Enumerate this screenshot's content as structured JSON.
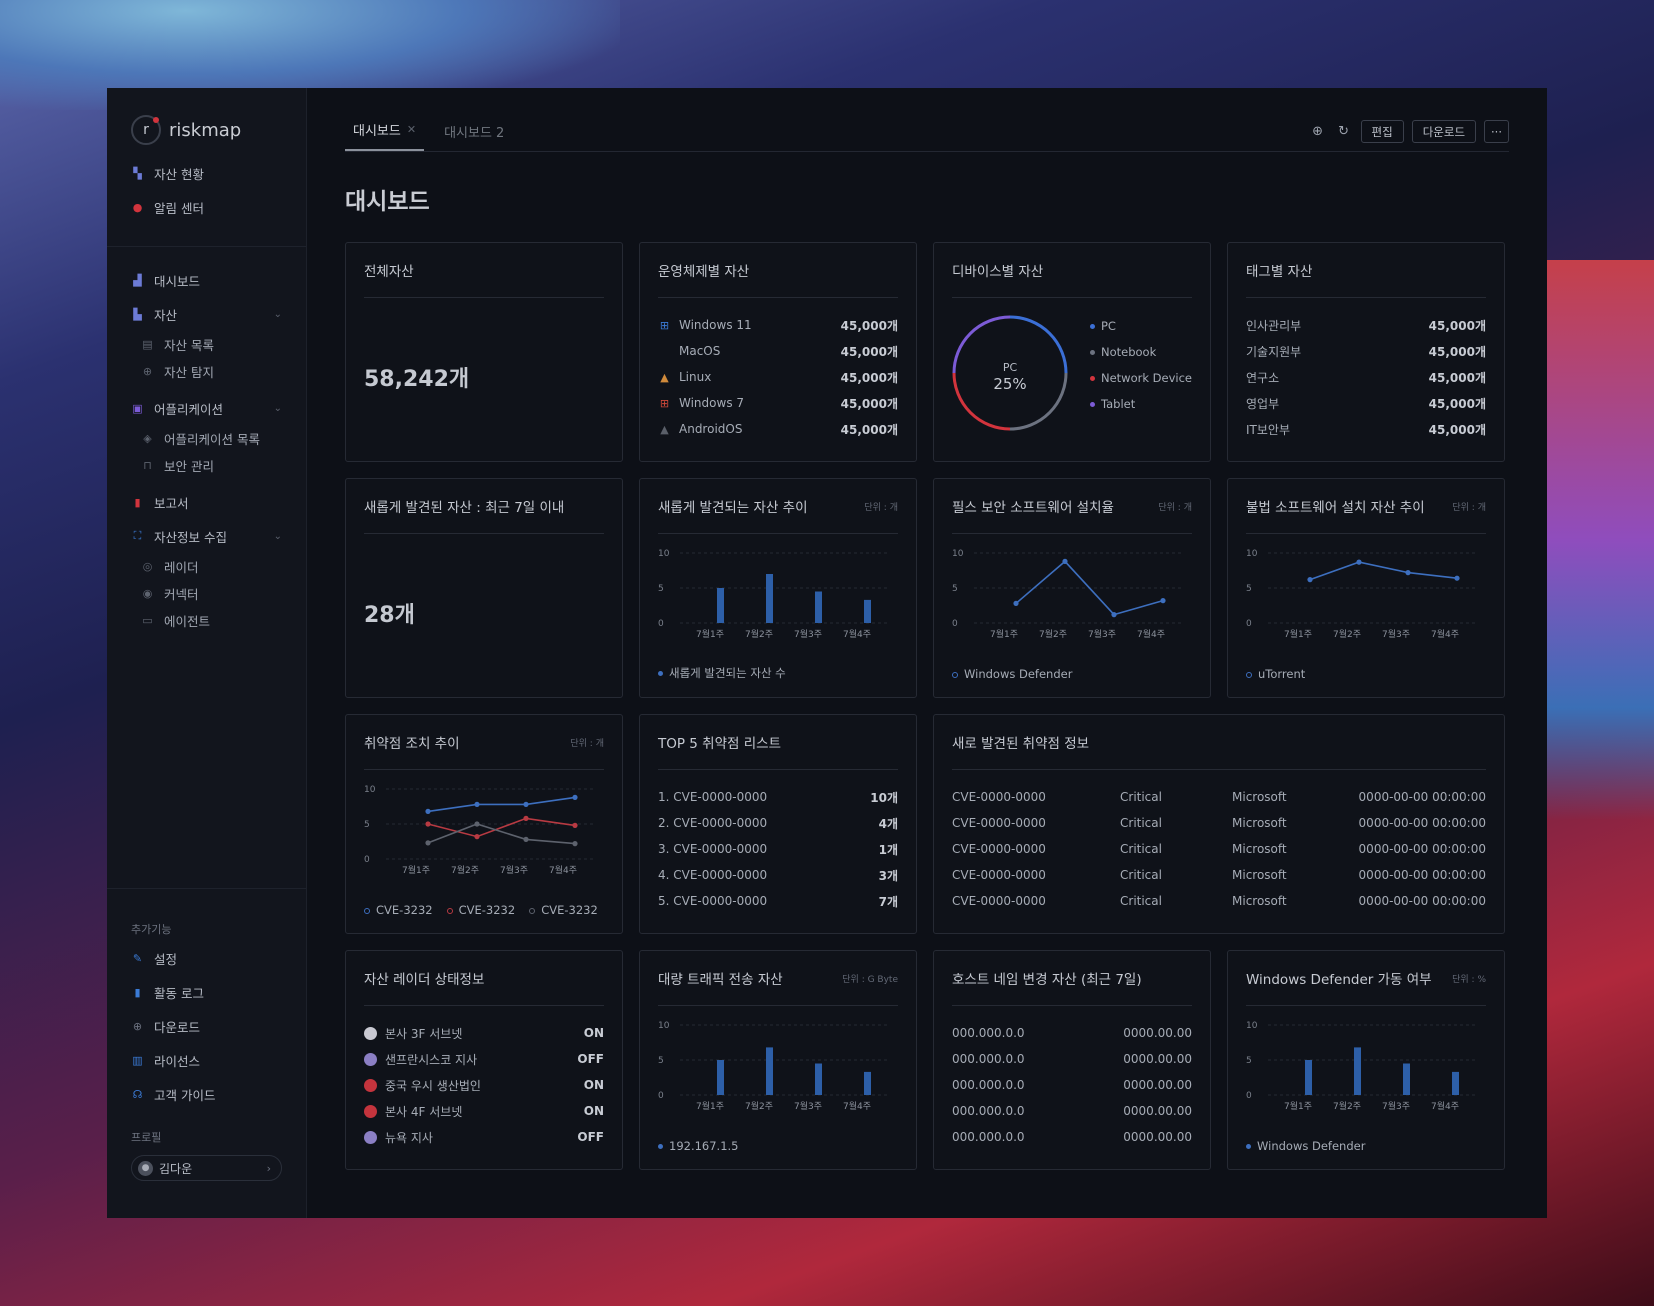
{
  "app": {
    "logo_text": "riskmap"
  },
  "sidebar": {
    "top_items": [
      {
        "label": "자산 현황",
        "icon": "asset-status-icon",
        "color": "#6c7bd6"
      },
      {
        "label": "알림 센터",
        "icon": "bell-icon",
        "color": "#d2343d"
      }
    ],
    "items": [
      {
        "label": "대시보드",
        "icon": "bar-chart-icon",
        "color": "#6c7bd6"
      },
      {
        "label": "자산",
        "icon": "building-icon",
        "color": "#6c7bd6"
      },
      {
        "label": "자산 목록",
        "icon": "list-icon"
      },
      {
        "label": "자산 탐지",
        "icon": "search-icon"
      },
      {
        "label": "어플리케이션",
        "icon": "app-icon",
        "color": "#7c5bd6"
      },
      {
        "label": "어플리케이션 목록",
        "icon": "layers-icon"
      },
      {
        "label": "보안 관리",
        "icon": "lock-icon"
      },
      {
        "label": "보고서",
        "icon": "report-icon",
        "color": "#d2343d"
      },
      {
        "label": "자산정보 수집",
        "icon": "scan-icon",
        "color": "#3b7bd6"
      },
      {
        "label": "레이더",
        "icon": "radar-icon"
      },
      {
        "label": "커넥터",
        "icon": "connector-icon"
      },
      {
        "label": "에이전트",
        "icon": "agent-icon"
      }
    ],
    "extra_label": "추가기능",
    "extra_items": [
      {
        "label": "설정",
        "icon": "wrench-icon",
        "color": "#3b7bd6"
      },
      {
        "label": "활동 로그",
        "icon": "log-icon",
        "color": "#3b7bd6"
      },
      {
        "label": "다운로드",
        "icon": "download-icon",
        "color": "#6c7280"
      },
      {
        "label": "라이선스",
        "icon": "license-icon",
        "color": "#3b7bd6"
      },
      {
        "label": "고객 가이드",
        "icon": "guide-icon",
        "color": "#3b7bd6"
      }
    ],
    "profile_label": "프로필",
    "profile_name": "김다운"
  },
  "tabs": [
    {
      "label": "대시보드",
      "active": true
    },
    {
      "label": "대시보드 2",
      "active": false
    }
  ],
  "toolbar": {
    "edit": "편집",
    "download": "다운로드",
    "more": "···"
  },
  "page_title": "대시보드",
  "cards": {
    "total": {
      "title": "전체자산",
      "value": "58,242개"
    },
    "os": {
      "title": "운영체제별 자산",
      "rows": [
        {
          "label": "Windows 11",
          "value": "45,000개",
          "icon": "windows-icon"
        },
        {
          "label": "MacOS",
          "value": "45,000개",
          "icon": "apple-icon"
        },
        {
          "label": "Linux",
          "value": "45,000개",
          "icon": "linux-icon"
        },
        {
          "label": "Windows 7",
          "value": "45,000개",
          "icon": "windows7-icon"
        },
        {
          "label": "AndroidOS",
          "value": "45,000개",
          "icon": "android-icon"
        }
      ]
    },
    "device": {
      "title": "디바이스별 자산",
      "center_label": "PC",
      "center_value": "25%",
      "legend": [
        {
          "label": "PC",
          "color": "#3b6fd6"
        },
        {
          "label": "Notebook",
          "color": "#6c7280"
        },
        {
          "label": "Network Device",
          "color": "#d2343d"
        },
        {
          "label": "Tablet",
          "color": "#7c5bd6"
        }
      ]
    },
    "tags": {
      "title": "태그별 자산",
      "rows": [
        {
          "label": "인사관리부",
          "value": "45,000개"
        },
        {
          "label": "기술지원부",
          "value": "45,000개"
        },
        {
          "label": "연구소",
          "value": "45,000개"
        },
        {
          "label": "영업부",
          "value": "45,000개"
        },
        {
          "label": "IT보안부",
          "value": "45,000개"
        }
      ]
    },
    "new7": {
      "title": "새롭게 발견된 자산 : 최근 7일 이내",
      "value": "28개"
    },
    "new_trend": {
      "title": "새롭게 발견되는 자산 추이",
      "unit": "단위 : 개",
      "legend": "새롭게 발견되는 자산 수"
    },
    "required_sw": {
      "title": "필스 보안 소프트웨어 설치율",
      "unit": "단위 : 개",
      "legend": "Windows Defender"
    },
    "illegal_sw": {
      "title": "불법 소프트웨어 설치 자산 추이",
      "unit": "단위 : 개",
      "legend": "uTorrent"
    },
    "vuln_trend": {
      "title": "취약점 조치 추이",
      "unit": "단위 : 개",
      "legend": [
        "CVE-3232",
        "CVE-3232",
        "CVE-3232"
      ]
    },
    "top5": {
      "title": "TOP 5 취약점 리스트",
      "rows": [
        {
          "label": "1. CVE-0000-0000",
          "value": "10개"
        },
        {
          "label": "2. CVE-0000-0000",
          "value": "4개"
        },
        {
          "label": "3. CVE-0000-0000",
          "value": "1개"
        },
        {
          "label": "4. CVE-0000-0000",
          "value": "3개"
        },
        {
          "label": "5. CVE-0000-0000",
          "value": "7개"
        }
      ]
    },
    "new_vuln": {
      "title": "새로 발견된 취약점 정보",
      "rows": [
        [
          "CVE-0000-0000",
          "Critical",
          "Microsoft",
          "0000-00-00 00:00:00"
        ],
        [
          "CVE-0000-0000",
          "Critical",
          "Microsoft",
          "0000-00-00 00:00:00"
        ],
        [
          "CVE-0000-0000",
          "Critical",
          "Microsoft",
          "0000-00-00 00:00:00"
        ],
        [
          "CVE-0000-0000",
          "Critical",
          "Microsoft",
          "0000-00-00 00:00:00"
        ],
        [
          "CVE-0000-0000",
          "Critical",
          "Microsoft",
          "0000-00-00 00:00:00"
        ]
      ]
    },
    "radar": {
      "title": "자산 레이더 상태정보",
      "rows": [
        {
          "label": "본사 3F 서브넷",
          "value": "ON",
          "flag": "#c9c9d2"
        },
        {
          "label": "샌프란시스코 지사",
          "value": "OFF",
          "flag": "#8b7fc4"
        },
        {
          "label": "중국 우시 생산법인",
          "value": "ON",
          "flag": "#c4343d"
        },
        {
          "label": "본사 4F 서브넷",
          "value": "ON",
          "flag": "#c4343d"
        },
        {
          "label": "뉴욕 지사",
          "value": "OFF",
          "flag": "#8b7fc4"
        }
      ]
    },
    "traffic": {
      "title": "대량 트래픽 전송 자산",
      "unit": "단위 : G Byte",
      "legend": "192.167.1.5"
    },
    "hostname": {
      "title": "호스트 네임 변경 자산 (최근 7일)",
      "rows": [
        [
          "000.000.0.0",
          "0000.00.00"
        ],
        [
          "000.000.0.0",
          "0000.00.00"
        ],
        [
          "000.000.0.0",
          "0000.00.00"
        ],
        [
          "000.000.0.0",
          "0000.00.00"
        ],
        [
          "000.000.0.0",
          "0000.00.00"
        ]
      ]
    },
    "defender": {
      "title": "Windows Defender 가동 여부",
      "unit": "단위 : %",
      "legend": "Windows Defender"
    }
  },
  "chart_data": [
    {
      "id": "new_trend",
      "type": "bar",
      "categories": [
        "7월1주",
        "7월2주",
        "7월3주",
        "7월4주"
      ],
      "values": [
        5,
        7,
        4.5,
        3.3
      ],
      "ylim": [
        0,
        10
      ],
      "yticks": [
        0,
        5,
        10
      ],
      "color": "#2d5fa8"
    },
    {
      "id": "required_sw",
      "type": "line",
      "categories": [
        "7월1주",
        "7월2주",
        "7월3주",
        "7월4주"
      ],
      "series": [
        {
          "name": "Windows Defender",
          "values": [
            2.8,
            8.8,
            1.2,
            3.2
          ],
          "color": "#3d6fbf"
        }
      ],
      "ylim": [
        0,
        10
      ],
      "yticks": [
        0,
        5,
        10
      ]
    },
    {
      "id": "illegal_sw",
      "type": "line",
      "categories": [
        "7월1주",
        "7월2주",
        "7월3주",
        "7월4주"
      ],
      "series": [
        {
          "name": "uTorrent",
          "values": [
            6.2,
            8.7,
            7.2,
            6.4
          ],
          "color": "#3d6fbf"
        }
      ],
      "ylim": [
        0,
        10
      ],
      "yticks": [
        0,
        5,
        10
      ]
    },
    {
      "id": "vuln_trend",
      "type": "line",
      "categories": [
        "7월1주",
        "7월2주",
        "7월3주",
        "7월4주"
      ],
      "series": [
        {
          "name": "CVE-3232",
          "values": [
            6.8,
            7.8,
            7.8,
            8.8
          ],
          "color": "#3d6fbf"
        },
        {
          "name": "CVE-3232",
          "values": [
            5,
            3.2,
            5.8,
            4.8
          ],
          "color": "#b83a42"
        },
        {
          "name": "CVE-3232",
          "values": [
            2.3,
            5,
            2.8,
            2.2
          ],
          "color": "#5d626d"
        }
      ],
      "ylim": [
        0,
        10
      ],
      "yticks": [
        0,
        5,
        10
      ]
    },
    {
      "id": "traffic",
      "type": "bar",
      "categories": [
        "7월1주",
        "7월2주",
        "7월3주",
        "7월4주"
      ],
      "values": [
        5,
        6.8,
        4.5,
        3.3
      ],
      "ylim": [
        0,
        10
      ],
      "yticks": [
        0,
        5,
        10
      ],
      "color": "#2d5fa8"
    },
    {
      "id": "defender",
      "type": "bar",
      "categories": [
        "7월1주",
        "7월2주",
        "7월3주",
        "7월4주"
      ],
      "values": [
        5,
        6.8,
        4.5,
        3.3
      ],
      "ylim": [
        0,
        10
      ],
      "yticks": [
        0,
        5,
        10
      ],
      "color": "#2d5fa8"
    },
    {
      "id": "device",
      "type": "pie",
      "categories": [
        "PC",
        "Notebook",
        "Network Device",
        "Tablet"
      ],
      "values": [
        25,
        25,
        25,
        25
      ]
    }
  ]
}
